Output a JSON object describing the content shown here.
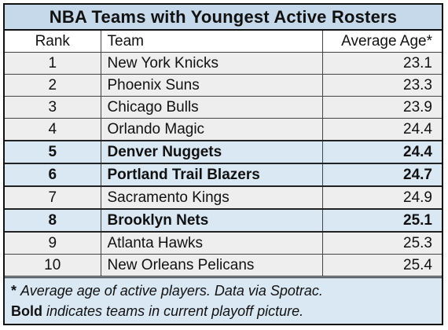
{
  "chart_data": {
    "type": "table",
    "title": "NBA Teams with Youngest Active Rosters",
    "columns": [
      "Rank",
      "Team",
      "Average Age*"
    ],
    "rows": [
      {
        "rank": "1",
        "team": "New York Knicks",
        "age": "23.1",
        "playoff": false
      },
      {
        "rank": "2",
        "team": "Phoenix Suns",
        "age": "23.3",
        "playoff": false
      },
      {
        "rank": "3",
        "team": "Chicago Bulls",
        "age": "23.9",
        "playoff": false
      },
      {
        "rank": "4",
        "team": "Orlando Magic",
        "age": "24.4",
        "playoff": false
      },
      {
        "rank": "5",
        "team": "Denver Nuggets",
        "age": "24.4",
        "playoff": true
      },
      {
        "rank": "6",
        "team": "Portland Trail Blazers",
        "age": "24.7",
        "playoff": true
      },
      {
        "rank": "7",
        "team": "Sacramento Kings",
        "age": "24.9",
        "playoff": false
      },
      {
        "rank": "8",
        "team": "Brooklyn Nets",
        "age": "25.1",
        "playoff": true
      },
      {
        "rank": "9",
        "team": "Atlanta Hawks",
        "age": "25.3",
        "playoff": false
      },
      {
        "rank": "10",
        "team": "New Orleans Pelicans",
        "age": "25.4",
        "playoff": false
      }
    ]
  },
  "footer": {
    "note_star": "*",
    "note_text": "Average age of active players. Data via Spotrac.",
    "bold_word": "Bold",
    "bold_text": "indicates teams in current playoff picture."
  },
  "colors": {
    "header_bg": "#c5d9ea",
    "row_bg": "#eeeeee",
    "highlight_bg": "#dae8f4"
  }
}
